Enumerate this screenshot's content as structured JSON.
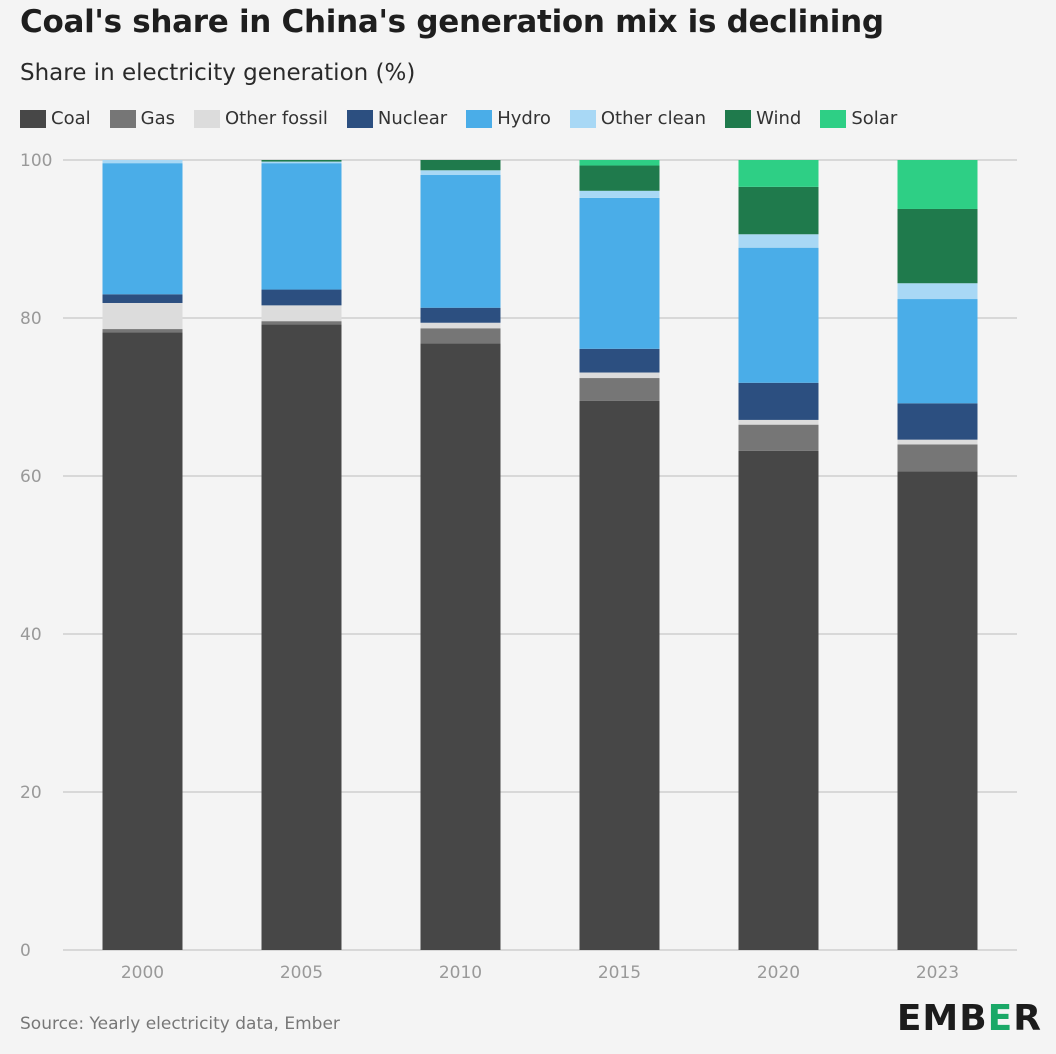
{
  "title": "Coal's share in China's generation mix is declining",
  "subtitle": "Share in electricity generation (%)",
  "source": "Source: Yearly electricity data, Ember",
  "logo": {
    "text_before": "EMB",
    "accent": "E",
    "text_after": "R"
  },
  "legend": [
    {
      "name": "Coal",
      "color": "#474747"
    },
    {
      "name": "Gas",
      "color": "#767676"
    },
    {
      "name": "Other fossil",
      "color": "#dcdcdc"
    },
    {
      "name": "Nuclear",
      "color": "#2c4f80"
    },
    {
      "name": "Hydro",
      "color": "#4aade8"
    },
    {
      "name": "Other clean",
      "color": "#a8d8f5"
    },
    {
      "name": "Wind",
      "color": "#1f7a4c"
    },
    {
      "name": "Solar",
      "color": "#2ecf85"
    }
  ],
  "chart_data": {
    "type": "bar",
    "stacked": true,
    "categories": [
      "2000",
      "2005",
      "2010",
      "2015",
      "2020",
      "2023"
    ],
    "ylim": [
      0,
      100
    ],
    "yticks": [
      0,
      20,
      40,
      60,
      80,
      100
    ],
    "grid": true,
    "legend_position": "top",
    "series": [
      {
        "name": "Coal",
        "color": "#474747",
        "values": [
          78.2,
          79.2,
          76.8,
          69.5,
          63.2,
          60.6
        ]
      },
      {
        "name": "Gas",
        "color": "#767676",
        "values": [
          0.4,
          0.4,
          1.9,
          2.9,
          3.3,
          3.4
        ]
      },
      {
        "name": "Other fossil",
        "color": "#dcdcdc",
        "values": [
          3.3,
          2.0,
          0.7,
          0.7,
          0.6,
          0.6
        ]
      },
      {
        "name": "Nuclear",
        "color": "#2c4f80",
        "values": [
          1.1,
          2.0,
          1.9,
          3.0,
          4.7,
          4.6
        ]
      },
      {
        "name": "Hydro",
        "color": "#4aade8",
        "values": [
          16.6,
          16.0,
          16.8,
          19.1,
          17.1,
          13.2
        ]
      },
      {
        "name": "Other clean",
        "color": "#a8d8f5",
        "values": [
          0.4,
          0.2,
          0.6,
          0.9,
          1.7,
          2.0
        ]
      },
      {
        "name": "Wind",
        "color": "#1f7a4c",
        "values": [
          0.0,
          0.2,
          1.3,
          3.2,
          6.0,
          9.4
        ]
      },
      {
        "name": "Solar",
        "color": "#2ecf85",
        "values": [
          0.0,
          0.0,
          0.0,
          0.7,
          3.4,
          6.2
        ]
      }
    ]
  }
}
